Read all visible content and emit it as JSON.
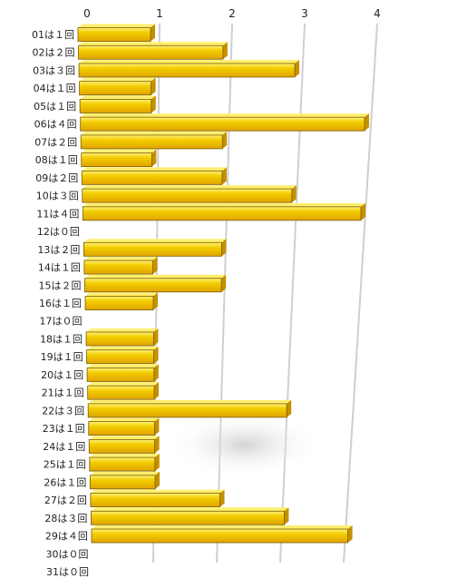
{
  "chart_data": {
    "type": "bar",
    "orientation": "horizontal",
    "style": "3d-perspective",
    "xlim": [
      0,
      4
    ],
    "x_ticks": [
      "0",
      "1",
      "2",
      "3",
      "4"
    ],
    "categories": [
      "01は１回",
      "02は２回",
      "03は３回",
      "04は１回",
      "05は１回",
      "06は４回",
      "07は２回",
      "08は１回",
      "09は２回",
      "10は３回",
      "11は４回",
      "12は０回",
      "13は２回",
      "14は１回",
      "15は２回",
      "16は１回",
      "17は０回",
      "18は１回",
      "19は１回",
      "20は１回",
      "21は１回",
      "22は３回",
      "23は１回",
      "24は１回",
      "25は１回",
      "26は１回",
      "27は２回",
      "28は３回",
      "29は４回",
      "30は０回",
      "31は０回"
    ],
    "values": [
      1,
      2,
      3,
      1,
      1,
      4,
      2,
      1,
      2,
      3,
      4,
      0,
      2,
      1,
      2,
      1,
      0,
      1,
      1,
      1,
      1,
      3,
      1,
      1,
      1,
      1,
      2,
      3,
      4,
      0,
      0
    ],
    "colors": {
      "bar_top": "#f0c800",
      "bar_bottom": "#e6a800",
      "bar_highlight": "#ffef6e",
      "bar_shadow": "#6e5400",
      "grid": "#cfcfcf"
    },
    "grid": true,
    "legend": "none",
    "title": "",
    "xlabel": "",
    "ylabel": ""
  }
}
